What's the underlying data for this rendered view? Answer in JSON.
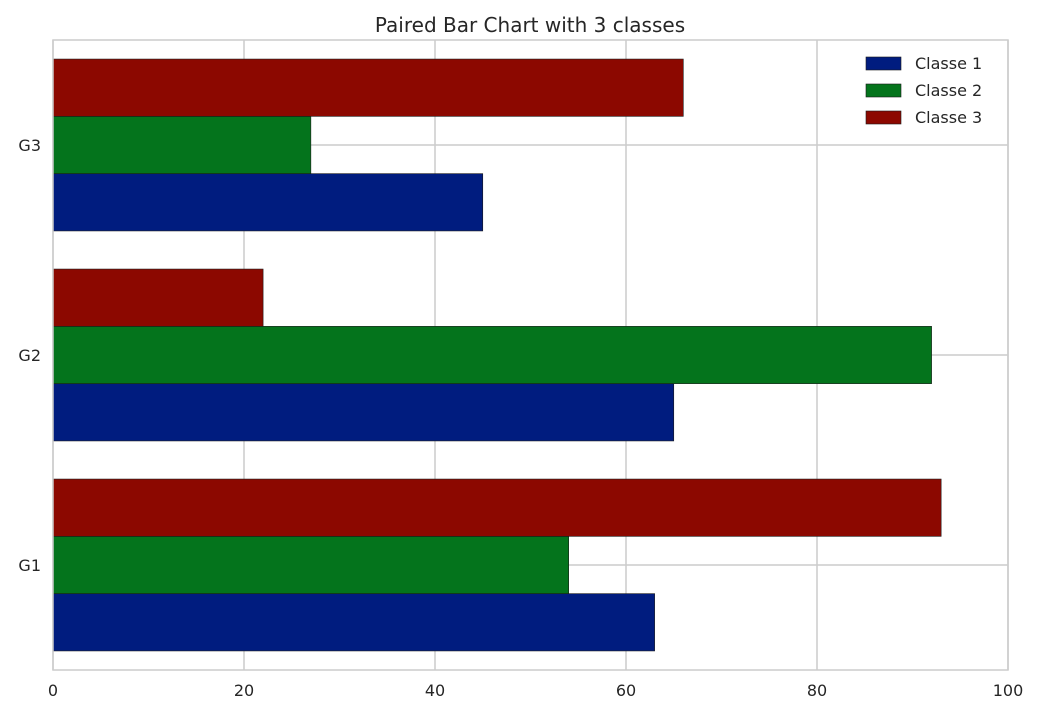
{
  "chart_data": {
    "type": "bar",
    "orientation": "horizontal",
    "title": "Paired Bar Chart with 3 classes",
    "xlabel": "",
    "ylabel": "",
    "categories": [
      "G1",
      "G2",
      "G3"
    ],
    "xlim": [
      0,
      100
    ],
    "xticks": [
      0,
      20,
      40,
      60,
      80,
      100
    ],
    "xtick_labels": [
      "0",
      "20",
      "40",
      "60",
      "80",
      "100"
    ],
    "grid": true,
    "legend_position": "top-right",
    "series": [
      {
        "name": "Classe 1",
        "color": "#001c7f",
        "values": [
          63,
          65,
          45
        ]
      },
      {
        "name": "Classe 2",
        "color": "#04741c",
        "values": [
          54,
          92,
          27
        ]
      },
      {
        "name": "Classe 3",
        "color": "#8c0800",
        "values": [
          93,
          22,
          66
        ]
      }
    ]
  }
}
